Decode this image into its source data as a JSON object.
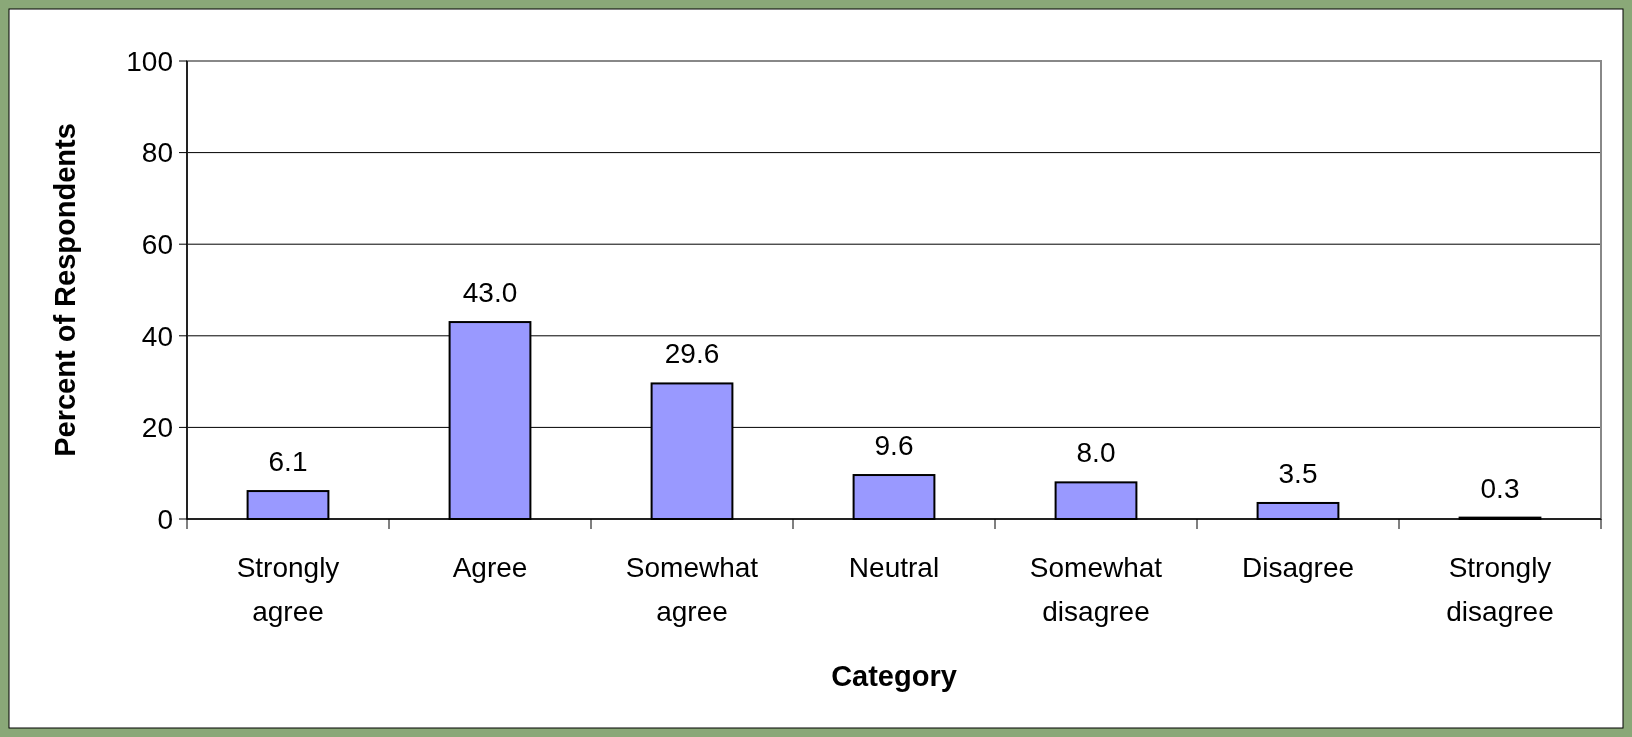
{
  "chart_data": {
    "type": "bar",
    "xlabel": "Category",
    "ylabel": "Percent of Respondents",
    "categories": [
      "Strongly agree",
      "Agree",
      "Somewhat agree",
      "Neutral",
      "Somewhat disagree",
      "Disagree",
      "Strongly disagree"
    ],
    "values": [
      6.1,
      43.0,
      29.6,
      9.6,
      8.0,
      3.5,
      0.3
    ],
    "color": "#9999ff",
    "ylim": [
      0,
      100
    ],
    "yticks": [
      0,
      20,
      40,
      60,
      80,
      100
    ],
    "value_labels": [
      "6.1",
      "43.0",
      "29.6",
      "9.6",
      "8.0",
      "3.5",
      "0.3"
    ],
    "grid": "y"
  }
}
